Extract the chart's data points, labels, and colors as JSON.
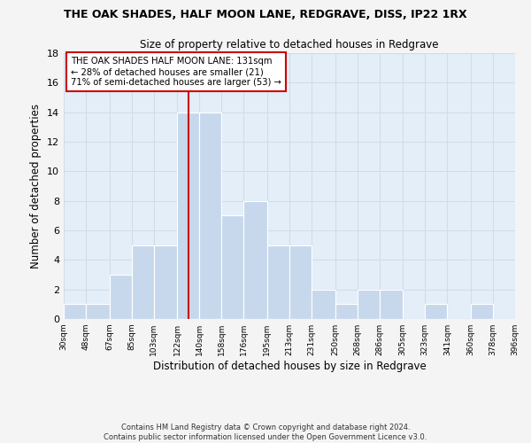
{
  "title": "THE OAK SHADES, HALF MOON LANE, REDGRAVE, DISS, IP22 1RX",
  "subtitle": "Size of property relative to detached houses in Redgrave",
  "xlabel": "Distribution of detached houses by size in Redgrave",
  "ylabel": "Number of detached properties",
  "bin_edges": [
    30,
    48,
    67,
    85,
    103,
    122,
    140,
    158,
    176,
    195,
    213,
    231,
    250,
    268,
    286,
    305,
    323,
    341,
    360,
    378,
    396
  ],
  "counts": [
    1,
    1,
    3,
    5,
    5,
    14,
    14,
    7,
    8,
    5,
    5,
    2,
    1,
    2,
    2,
    0,
    1,
    0,
    1,
    0
  ],
  "bar_color": "#c8d8ec",
  "bar_edge_color": "#ffffff",
  "grid_color": "#d0dce8",
  "bg_color": "#e4eef8",
  "vline_x": 131,
  "vline_color": "#cc0000",
  "annotation_line1": "THE OAK SHADES HALF MOON LANE: 131sqm",
  "annotation_line2": "← 28% of detached houses are smaller (21)",
  "annotation_line3": "71% of semi-detached houses are larger (53) →",
  "footnote1": "Contains HM Land Registry data © Crown copyright and database right 2024.",
  "footnote2": "Contains public sector information licensed under the Open Government Licence v3.0.",
  "ylim": [
    0,
    18
  ],
  "yticks": [
    0,
    2,
    4,
    6,
    8,
    10,
    12,
    14,
    16,
    18
  ],
  "tick_labels": [
    "30sqm",
    "48sqm",
    "67sqm",
    "85sqm",
    "103sqm",
    "122sqm",
    "140sqm",
    "158sqm",
    "176sqm",
    "195sqm",
    "213sqm",
    "231sqm",
    "250sqm",
    "268sqm",
    "286sqm",
    "305sqm",
    "323sqm",
    "341sqm",
    "360sqm",
    "378sqm",
    "396sqm"
  ]
}
